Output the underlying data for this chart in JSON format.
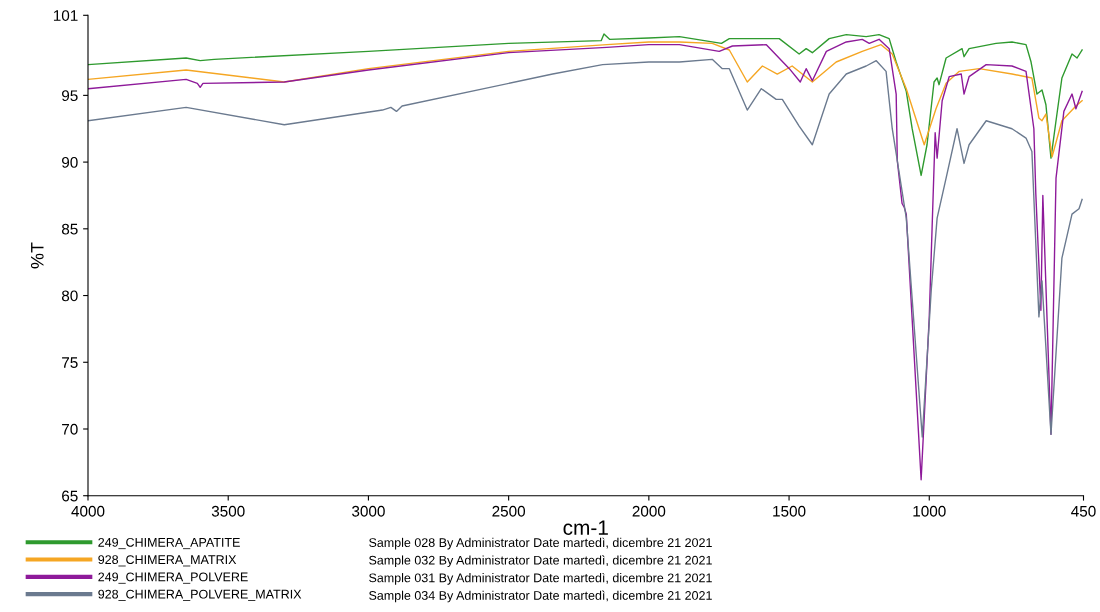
{
  "chart_data": {
    "type": "line",
    "xlabel": "cm-1",
    "ylabel": "%T",
    "xlim": [
      4000,
      450
    ],
    "xticks": [
      4000,
      3500,
      3000,
      2500,
      2000,
      1500,
      1000,
      450
    ],
    "ylim": [
      65,
      101
    ],
    "yticks": [
      65,
      70,
      75,
      80,
      85,
      90,
      95,
      101
    ],
    "legend": "bottom",
    "marker": "none",
    "line_style": "solid",
    "annotations": [
      "Sample 028 By Administrator Date martedì, dicembre 21 2021",
      "Sample 032 By Administrator Date martedì, dicembre 21 2021",
      "Sample 031 By Administrator Date martedì, dicembre 21 2021",
      "Sample 034 By Administrator Date martedì, dicembre 21 2021"
    ],
    "series": [
      {
        "name": "249_CHIMERA_APATITE",
        "color": "#2e9a2e",
        "x": [
          4000,
          3650,
          3600,
          3550,
          3000,
          2500,
          2170,
          2160,
          2140,
          2000,
          1891,
          1741,
          1713,
          1535,
          1464,
          1439,
          1417,
          1357,
          1296,
          1225,
          1179,
          1143,
          1118,
          1082,
          1061,
          1029,
          1008,
          983,
          972,
          965,
          940,
          883,
          876,
          858,
          762,
          705,
          655,
          637,
          616,
          598,
          584,
          566,
          548,
          527,
          491,
          473,
          455
        ],
        "values": [
          97.3,
          97.8,
          97.6,
          97.7,
          98.3,
          98.9,
          99.1,
          99.6,
          99.2,
          99.3,
          99.4,
          98.9,
          99.25,
          99.25,
          98.1,
          98.5,
          98.2,
          99.25,
          99.55,
          99.4,
          99.55,
          99.25,
          97.5,
          95.3,
          92.5,
          89.0,
          91.3,
          96.0,
          96.3,
          95.8,
          97.8,
          98.5,
          97.9,
          98.5,
          98.9,
          99.0,
          98.8,
          97.5,
          95.1,
          95.4,
          94.3,
          90.3,
          93.1,
          96.3,
          98.1,
          97.8,
          98.4
        ]
      },
      {
        "name": "928_CHIMERA_MATRIX",
        "color": "#f5a623",
        "x": [
          4000,
          3650,
          3300,
          3000,
          2500,
          2150,
          2000,
          1891,
          1774,
          1713,
          1649,
          1595,
          1542,
          1489,
          1417,
          1332,
          1239,
          1172,
          1132,
          1082,
          1018,
          976,
          940,
          893,
          822,
          705,
          634,
          609,
          598,
          584,
          562,
          527,
          477,
          455
        ],
        "values": [
          96.2,
          96.9,
          96.0,
          97.0,
          98.3,
          98.8,
          99.0,
          99.0,
          98.9,
          98.4,
          96.0,
          97.2,
          96.6,
          97.2,
          96.0,
          97.5,
          98.3,
          98.8,
          98.1,
          95.5,
          91.3,
          94.0,
          95.9,
          96.8,
          97.0,
          96.6,
          96.3,
          93.3,
          93.1,
          93.6,
          90.4,
          93.1,
          94.2,
          94.6
        ]
      },
      {
        "name": "249_CHIMERA_POLVERE",
        "color": "#8e1a9a",
        "x": [
          4000,
          3650,
          3610,
          3600,
          3590,
          3300,
          3000,
          2500,
          2150,
          2000,
          1891,
          1749,
          1702,
          1581,
          1499,
          1460,
          1439,
          1417,
          1367,
          1296,
          1239,
          1214,
          1179,
          1143,
          1118,
          1114,
          1097,
          1089,
          1082,
          1029,
          1000,
          990,
          979,
          972,
          954,
          929,
          886,
          876,
          858,
          797,
          705,
          655,
          627,
          620,
          602,
          595,
          566,
          548,
          520,
          491,
          477,
          455
        ],
        "values": [
          95.5,
          96.2,
          95.9,
          95.6,
          95.9,
          96.0,
          96.9,
          98.2,
          98.6,
          98.8,
          98.8,
          98.3,
          98.7,
          98.8,
          97.0,
          96.0,
          97.0,
          96.1,
          98.3,
          99.0,
          99.2,
          98.9,
          99.2,
          98.5,
          95.1,
          90.1,
          86.9,
          86.6,
          86.1,
          66.2,
          78.4,
          85.0,
          92.2,
          90.3,
          94.6,
          96.4,
          96.6,
          95.1,
          96.4,
          97.3,
          97.2,
          96.8,
          92.5,
          87.6,
          78.9,
          87.5,
          69.6,
          88.8,
          93.8,
          95.1,
          94.0,
          95.3
        ]
      },
      {
        "name": "928_CHIMERA_POLVERE_MATRIX",
        "color": "#6b7a8f",
        "x": [
          4000,
          3650,
          3300,
          2950,
          2920,
          2900,
          2880,
          2343,
          2165,
          2000,
          1891,
          1774,
          1738,
          1713,
          1649,
          1599,
          1546,
          1524,
          1464,
          1417,
          1357,
          1296,
          1225,
          1189,
          1154,
          1132,
          1114,
          1082,
          1025,
          993,
          972,
          940,
          901,
          876,
          858,
          797,
          705,
          655,
          634,
          609,
          598,
          566,
          527,
          491,
          466,
          455
        ],
        "values": [
          93.1,
          94.1,
          92.8,
          93.9,
          94.1,
          93.8,
          94.2,
          96.6,
          97.3,
          97.5,
          97.5,
          97.7,
          97.0,
          97.0,
          93.9,
          95.5,
          94.7,
          94.7,
          92.7,
          91.3,
          95.1,
          96.6,
          97.2,
          97.6,
          96.8,
          92.5,
          90.1,
          85.8,
          69.4,
          80.4,
          85.8,
          88.8,
          92.5,
          89.9,
          91.3,
          93.1,
          92.5,
          91.8,
          90.8,
          78.4,
          81.1,
          69.6,
          82.8,
          86.1,
          86.5,
          87.2
        ]
      }
    ]
  }
}
